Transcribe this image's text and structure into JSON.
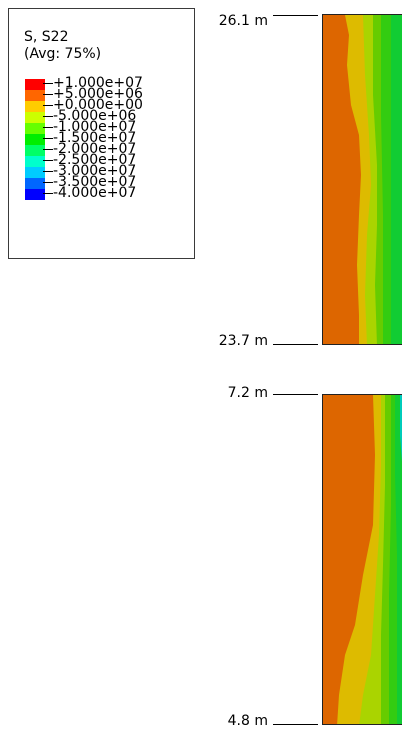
{
  "legend": {
    "title_line1": "S, S22",
    "title_line2": "(Avg: 75%)",
    "colors": [
      "#ff0000",
      "#ff6600",
      "#ffcc00",
      "#ccff00",
      "#66ff00",
      "#00ee00",
      "#00ff66",
      "#00ffcc",
      "#00ccff",
      "#0066ff",
      "#0000ff"
    ],
    "labels": [
      "+1.000e+07",
      "+5.000e+06",
      "+0.000e+00",
      "-5.000e+06",
      "-1.000e+07",
      "-1.500e+07",
      "-2.000e+07",
      "-2.500e+07",
      "-3.000e+07",
      "-3.500e+07",
      "-4.000e+07"
    ]
  },
  "top_panel": {
    "top_label": "26.1 m",
    "bottom_label": "23.7 m"
  },
  "bottom_panel": {
    "top_label": "7.2 m",
    "bottom_label": "4.8 m"
  },
  "band_colors": {
    "orange": "#dd6600",
    "yellow": "#ddbb00",
    "yellowgreen": "#aad400",
    "green1": "#66cc00",
    "green2": "#33cc11",
    "green3": "#11cc33",
    "cyan": "#00ccbb"
  }
}
